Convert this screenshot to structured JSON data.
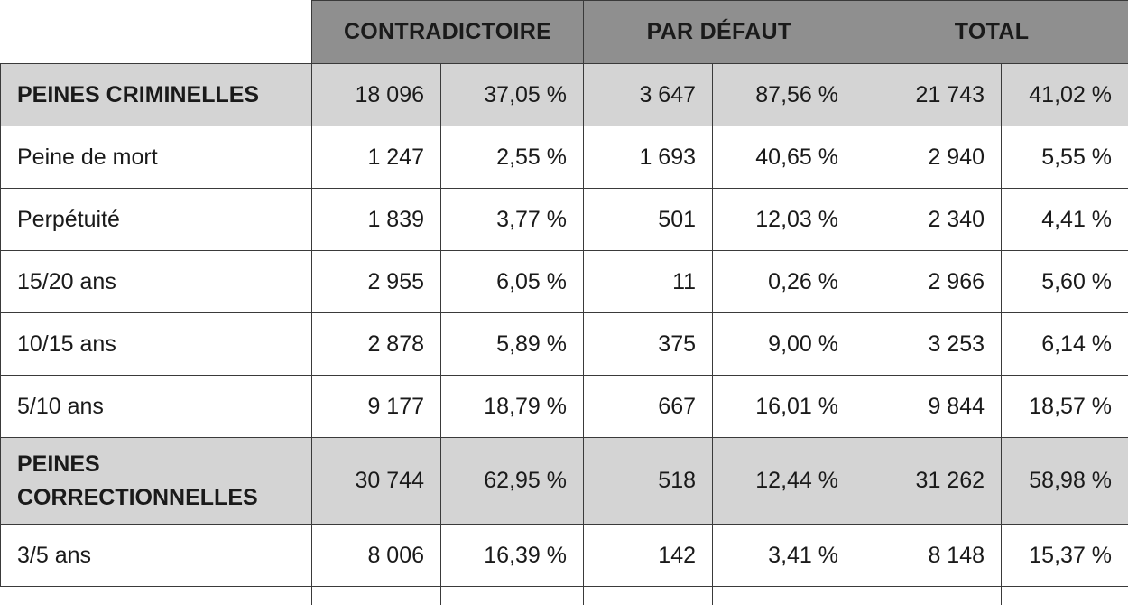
{
  "columns": {
    "contradictoire": "CONTRADICTOIRE",
    "par_defaut": "PAR DÉFAUT",
    "total": "TOTAL"
  },
  "rows": [
    {
      "label": "PEINES CRIMINELLES",
      "group": true,
      "c_n": "18 096",
      "c_p": "37,05 %",
      "d_n": "3 647",
      "d_p": "87,56 %",
      "t_n": "21 743",
      "t_p": "41,02 %"
    },
    {
      "label": "Peine de mort",
      "group": false,
      "c_n": "1 247",
      "c_p": "2,55 %",
      "d_n": "1 693",
      "d_p": "40,65 %",
      "t_n": "2 940",
      "t_p": "5,55 %"
    },
    {
      "label": "Perpétuité",
      "group": false,
      "c_n": "1 839",
      "c_p": "3,77 %",
      "d_n": "501",
      "d_p": "12,03 %",
      "t_n": "2 340",
      "t_p": "4,41 %"
    },
    {
      "label": "15/20 ans",
      "group": false,
      "c_n": "2 955",
      "c_p": "6,05 %",
      "d_n": "11",
      "d_p": "0,26 %",
      "t_n": "2 966",
      "t_p": "5,60 %"
    },
    {
      "label": "10/15 ans",
      "group": false,
      "c_n": "2 878",
      "c_p": "5,89 %",
      "d_n": "375",
      "d_p": "9,00 %",
      "t_n": "3 253",
      "t_p": "6,14 %"
    },
    {
      "label": "5/10 ans",
      "group": false,
      "c_n": "9 177",
      "c_p": "18,79 %",
      "d_n": "667",
      "d_p": "16,01 %",
      "t_n": "9 844",
      "t_p": "18,57 %"
    },
    {
      "label_line1": "PEINES",
      "label_line2": "CORRECTIONNELLES",
      "group": true,
      "c_n": "30 744",
      "c_p": "62,95 %",
      "d_n": "518",
      "d_p": "12,44 %",
      "t_n": "31 262",
      "t_p": "58,98 %"
    },
    {
      "label": "3/5 ans",
      "group": false,
      "c_n": "8 006",
      "c_p": "16,39 %",
      "d_n": "142",
      "d_p": "3,41 %",
      "t_n": "8 148",
      "t_p": "15,37 %"
    }
  ]
}
